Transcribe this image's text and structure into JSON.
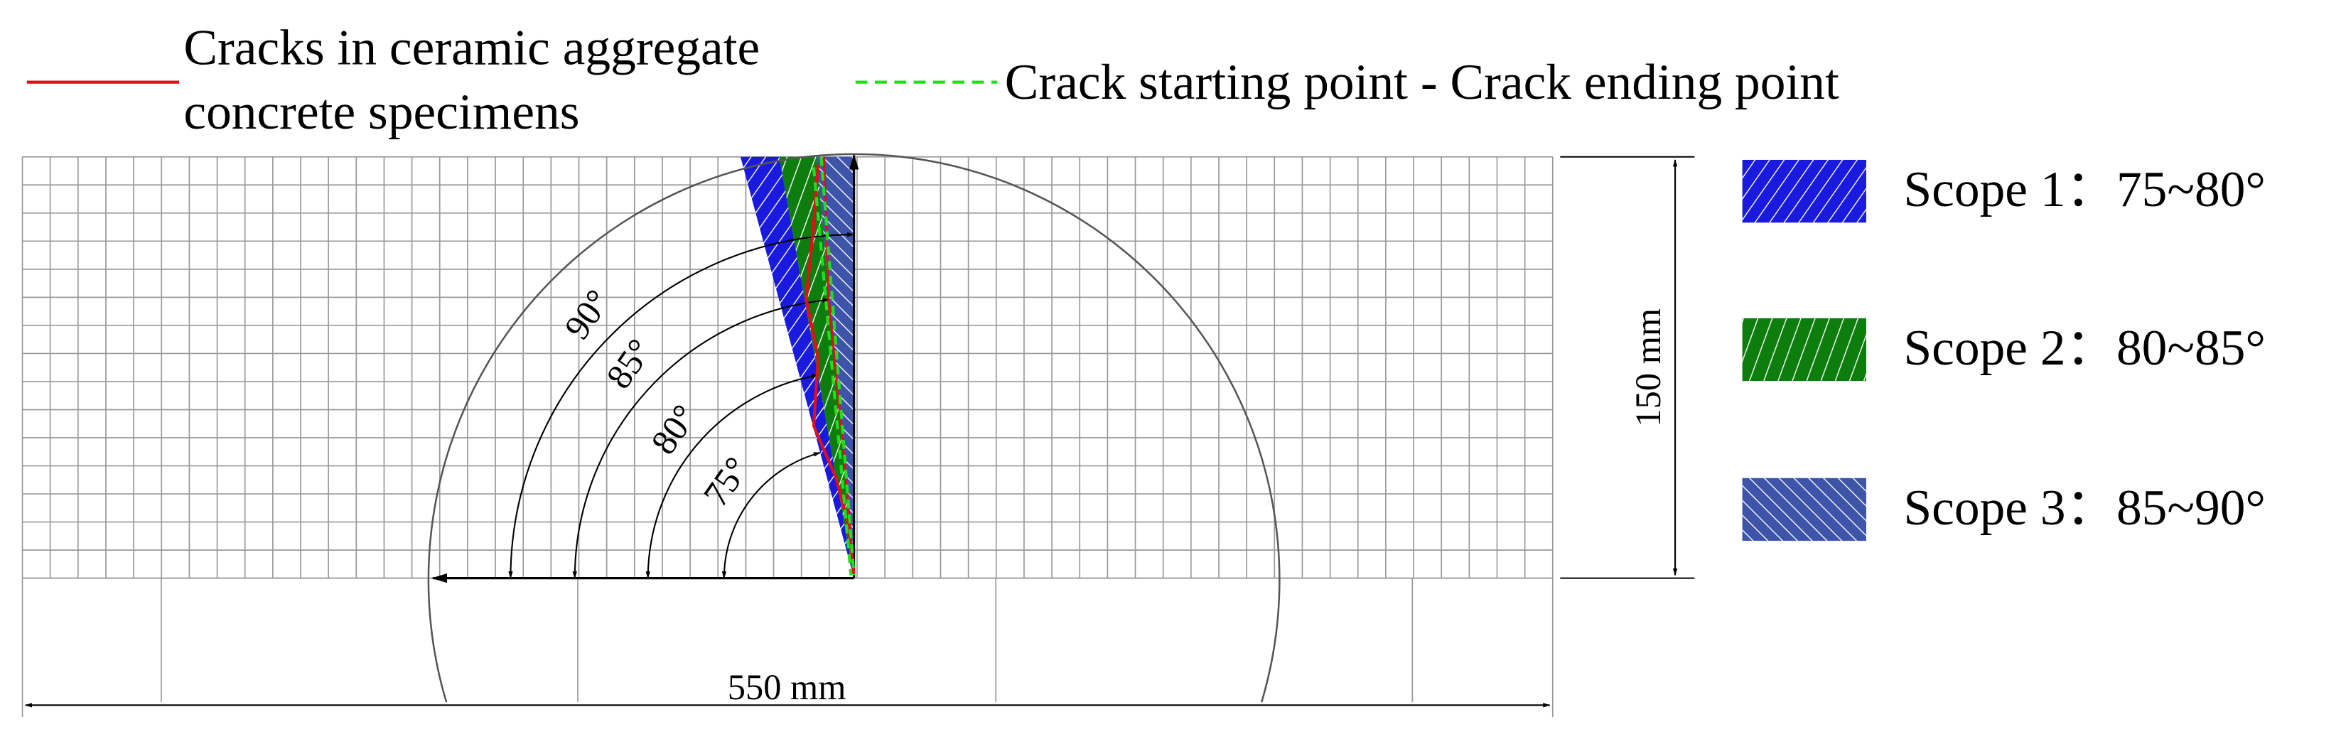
{
  "legend": {
    "crack_line": [
      "Cracks in ceramic aggregate",
      "concrete specimens"
    ],
    "dashed_line": "Crack starting point - Crack ending point"
  },
  "scopes": [
    {
      "label": "Scope 1：75~80°"
    },
    {
      "label": "Scope 2：80~85°"
    },
    {
      "label": "Scope 3：85~90°"
    }
  ],
  "angles": [
    "90°",
    "85°",
    "80°",
    "75°"
  ],
  "dimensions": {
    "height": "150 mm",
    "width": "550 mm"
  }
}
